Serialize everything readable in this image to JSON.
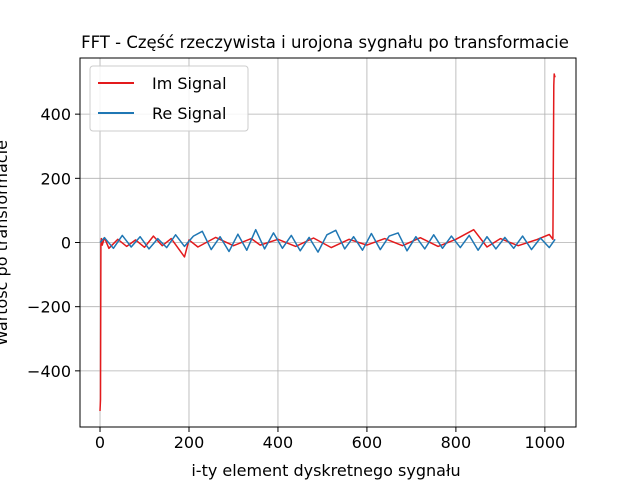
{
  "chart_data": {
    "type": "line",
    "title": "FFT - Część rzeczywista i urojona sygnału po transformacie",
    "xlabel": "i-ty element dyskretnego sygnału",
    "ylabel": "Wartość po transformacie",
    "xlim": [
      -45,
      1070
    ],
    "ylim": [
      -575,
      575
    ],
    "x_ticks": [
      0,
      200,
      400,
      600,
      800,
      1000
    ],
    "y_ticks": [
      -400,
      -200,
      0,
      200,
      400
    ],
    "x_tick_labels": [
      "0",
      "200",
      "400",
      "600",
      "800",
      "1000"
    ],
    "y_tick_labels": [
      "−400",
      "−200",
      "0",
      "200",
      "400"
    ],
    "grid": true,
    "legend_position": "top-left",
    "series": [
      {
        "name": "Im Signal",
        "color": "#e31a1c",
        "x": [
          0,
          1,
          2,
          3,
          5,
          10,
          20,
          40,
          60,
          80,
          100,
          120,
          140,
          160,
          190,
          200,
          220,
          260,
          300,
          340,
          360,
          400,
          440,
          480,
          520,
          560,
          600,
          640,
          680,
          720,
          760,
          800,
          840,
          870,
          900,
          940,
          980,
          1010,
          1018,
          1020,
          1021,
          1022,
          1023
        ],
        "values": [
          -525,
          -490,
          -10,
          12,
          -8,
          15,
          -18,
          10,
          -12,
          8,
          -15,
          20,
          -10,
          12,
          -45,
          8,
          -14,
          16,
          -10,
          12,
          -8,
          10,
          -12,
          14,
          -16,
          10,
          -8,
          12,
          -10,
          15,
          -12,
          10,
          40,
          -14,
          12,
          -10,
          8,
          25,
          10,
          490,
          525,
          520,
          515
        ]
      },
      {
        "name": "Re Signal",
        "color": "#1f77b4",
        "x": [
          0,
          10,
          30,
          50,
          70,
          90,
          110,
          130,
          150,
          170,
          190,
          210,
          230,
          250,
          270,
          290,
          310,
          330,
          350,
          370,
          390,
          410,
          430,
          450,
          470,
          490,
          510,
          530,
          550,
          570,
          590,
          610,
          630,
          650,
          670,
          690,
          710,
          730,
          750,
          770,
          790,
          810,
          830,
          850,
          870,
          890,
          910,
          930,
          950,
          970,
          990,
          1010,
          1023
        ],
        "values": [
          0,
          15,
          -18,
          22,
          -14,
          18,
          -20,
          12,
          -16,
          24,
          -12,
          20,
          35,
          -22,
          18,
          -28,
          26,
          -24,
          40,
          -20,
          30,
          -18,
          22,
          -26,
          16,
          -30,
          24,
          38,
          -20,
          18,
          -24,
          28,
          -22,
          20,
          30,
          -26,
          18,
          -20,
          24,
          -18,
          20,
          -16,
          22,
          -24,
          18,
          -20,
          16,
          -18,
          20,
          -22,
          14,
          -16,
          10
        ]
      }
    ]
  }
}
